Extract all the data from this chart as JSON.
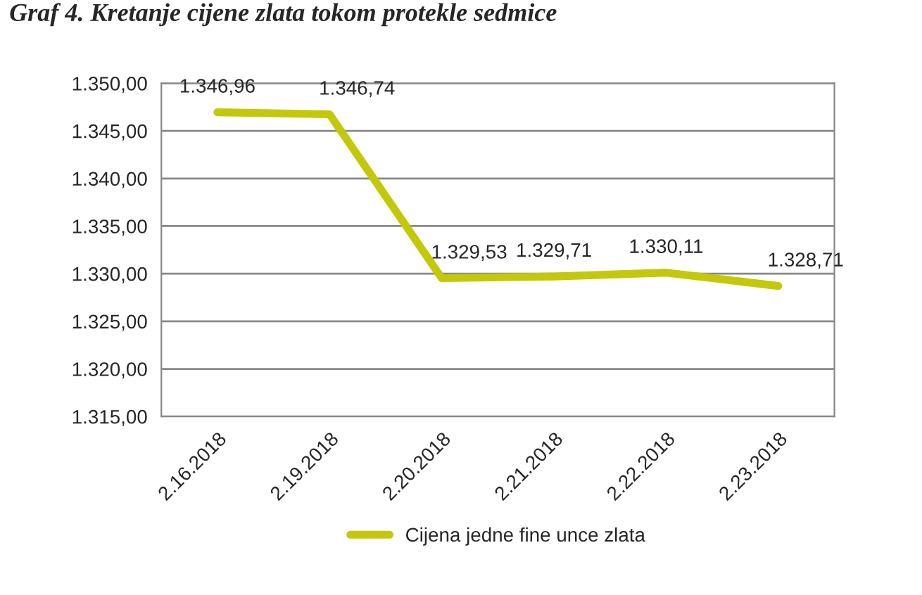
{
  "chart_data": {
    "type": "line",
    "title": "Graf 4. Kretanje cijene zlata tokom protekle sedmice",
    "categories": [
      "2.16.2018",
      "2.19.2018",
      "2.20.2018",
      "2.21.2018",
      "2.22.2018",
      "2.23.2018"
    ],
    "series": [
      {
        "name": "Cijena jedne fine unce zlata",
        "color": "#c4c80a",
        "values": [
          1346.96,
          1346.74,
          1329.53,
          1329.71,
          1330.11,
          1328.71
        ],
        "value_labels": [
          "1.346,96",
          "1.346,74",
          "1.329,53",
          "1.329,71",
          "1.330,11",
          "1.328,71"
        ]
      }
    ],
    "ylim": [
      1315,
      1350
    ],
    "yticks": [
      {
        "value": 1315,
        "label": "1.315,00"
      },
      {
        "value": 1320,
        "label": "1.320,00"
      },
      {
        "value": 1325,
        "label": "1.325,00"
      },
      {
        "value": 1330,
        "label": "1.330,00"
      },
      {
        "value": 1335,
        "label": "1.335,00"
      },
      {
        "value": 1340,
        "label": "1.340,00"
      },
      {
        "value": 1345,
        "label": "1.345,00"
      },
      {
        "value": 1350,
        "label": "1.350,00"
      }
    ],
    "grid": "y",
    "legend": "bottom",
    "marker": "none",
    "line_style": "solid"
  }
}
